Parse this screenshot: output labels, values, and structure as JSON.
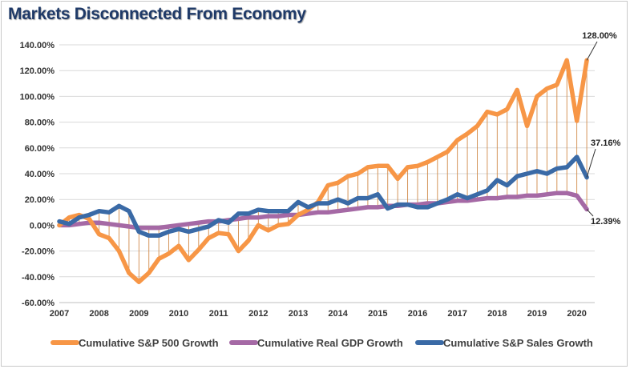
{
  "chart_data": {
    "type": "line",
    "title": "Markets Disconnected From Economy",
    "x_ticks": [
      "2007",
      "2008",
      "2009",
      "2010",
      "2011",
      "2012",
      "2013",
      "2014",
      "2015",
      "2016",
      "2017",
      "2018",
      "2019",
      "2020"
    ],
    "y_ticks": [
      "-60.00%",
      "-40.00%",
      "-20.00%",
      "0.00%",
      "20.00%",
      "40.00%",
      "60.00%",
      "80.00%",
      "100.00%",
      "120.00%",
      "140.00%"
    ],
    "ylim": [
      -60,
      140
    ],
    "xlim": [
      2007,
      2020.45
    ],
    "grid": "horizontal",
    "legend_position": "bottom",
    "x": [
      2007.0,
      2007.25,
      2007.5,
      2007.75,
      2008.0,
      2008.25,
      2008.5,
      2008.75,
      2009.0,
      2009.25,
      2009.5,
      2009.75,
      2010.0,
      2010.25,
      2010.5,
      2010.75,
      2011.0,
      2011.25,
      2011.5,
      2011.75,
      2012.0,
      2012.25,
      2012.5,
      2012.75,
      2013.0,
      2013.25,
      2013.5,
      2013.75,
      2014.0,
      2014.25,
      2014.5,
      2014.75,
      2015.0,
      2015.25,
      2015.5,
      2015.75,
      2016.0,
      2016.25,
      2016.5,
      2016.75,
      2017.0,
      2017.25,
      2017.5,
      2017.75,
      2018.0,
      2018.25,
      2018.5,
      2018.75,
      2019.0,
      2019.25,
      2019.5,
      2019.75,
      2020.0,
      2020.25
    ],
    "series": [
      {
        "name": "Cumulative S&P 500 Growth",
        "color": "#f79646",
        "values": [
          0,
          6,
          8,
          5,
          -7,
          -10,
          -20,
          -37,
          -44,
          -37,
          -26,
          -22,
          -16,
          -27,
          -19,
          -10,
          -6,
          -7,
          -20,
          -12,
          0,
          -4,
          0,
          1,
          8,
          12,
          18,
          31,
          33,
          38,
          40,
          45,
          46,
          46,
          36,
          45,
          46,
          49,
          53,
          57,
          66,
          71,
          77,
          88,
          86,
          90,
          105,
          77,
          100,
          106,
          109,
          128,
          81,
          128
        ]
      },
      {
        "name": "Cumulative Real GDP Growth",
        "color": "#a569a5",
        "values": [
          0,
          0,
          1,
          2,
          2,
          1,
          0,
          -1,
          -2,
          -2,
          -2,
          -1,
          0,
          1,
          2,
          3,
          3,
          4,
          5,
          6,
          6,
          7,
          7,
          8,
          8,
          9,
          10,
          10,
          11,
          12,
          13,
          14,
          14,
          15,
          15,
          16,
          16,
          17,
          17,
          18,
          19,
          19,
          20,
          21,
          21,
          22,
          22,
          23,
          23,
          24,
          25,
          25,
          23,
          12.39
        ]
      },
      {
        "name": "Cumulative S&P Sales Growth",
        "color": "#3a6aa6",
        "values": [
          3,
          1,
          6,
          8,
          11,
          10,
          15,
          11,
          -5,
          -8,
          -8,
          -5,
          -3,
          -5,
          -3,
          -1,
          4,
          2,
          9,
          9,
          12,
          11,
          11,
          11,
          18,
          14,
          17,
          17,
          20,
          17,
          21,
          21,
          24,
          13,
          16,
          16,
          14,
          14,
          17,
          20,
          24,
          21,
          24,
          27,
          35,
          31,
          38,
          40,
          42,
          40,
          44,
          45,
          53,
          37.16
        ]
      }
    ],
    "annotations": [
      "128.00%",
      "37.16%",
      "12.39%"
    ]
  }
}
